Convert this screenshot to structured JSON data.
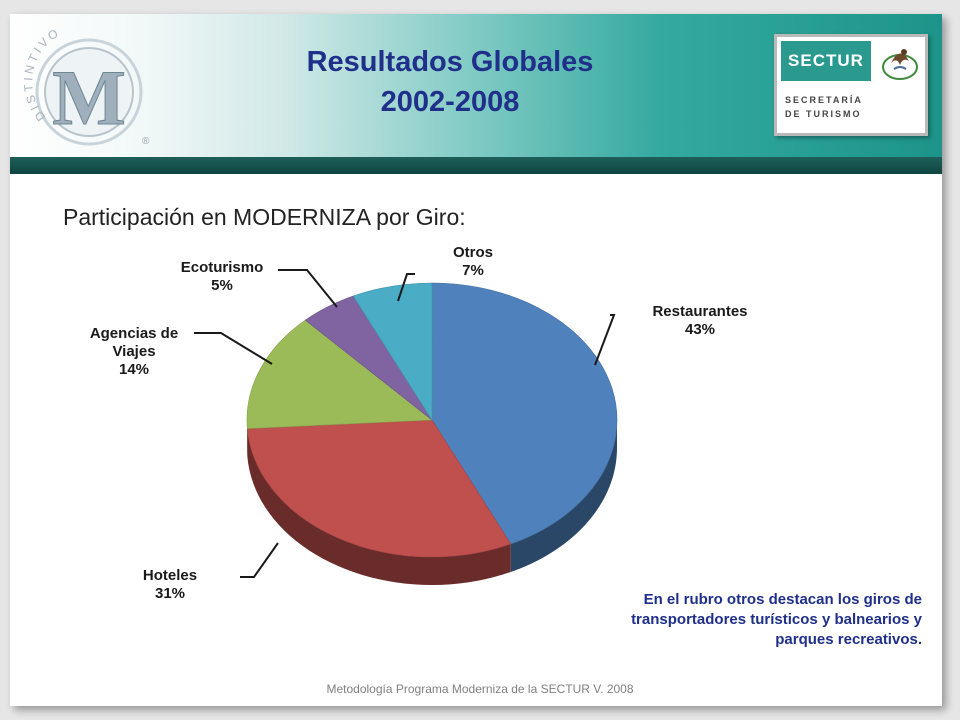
{
  "header": {
    "title_line1": "Resultados Globales",
    "title_line2": "2002-2008",
    "logo_letter": "M",
    "logo_ring_text": "DISTINTIVO",
    "logo_reg": "®",
    "sectur_brand": "SECTUR",
    "sectur_line1": "SECRETARÍA",
    "sectur_line2": "DE TURISMO"
  },
  "subtitle": "Participación en MODERNIZA por Giro:",
  "chart_data": {
    "type": "pie",
    "title": "",
    "slices": [
      {
        "label": "Restaurantes",
        "value": 43,
        "display": "43%",
        "color": "#4f81bd"
      },
      {
        "label": "Hoteles",
        "value": 31,
        "display": "31%",
        "color": "#c0504d"
      },
      {
        "label": "Agencias de Viajes",
        "value": 14,
        "display": "14%",
        "color": "#9bbb59"
      },
      {
        "label": "Ecoturismo",
        "value": 5,
        "display": "5%",
        "color": "#8064a2"
      },
      {
        "label": "Otros",
        "value": 7,
        "display": "7%",
        "color": "#4bacc6"
      }
    ]
  },
  "note": {
    "line1": "En el rubro otros destacan los giros de",
    "line2": "transportadores turísticos y balnearios y",
    "line3": "parques recreativos."
  },
  "footer": "Metodología Programa Moderniza de la SECTUR V. 2008"
}
